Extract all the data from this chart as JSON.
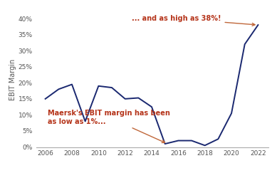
{
  "years": [
    2006,
    2007,
    2008,
    2009,
    2010,
    2011,
    2012,
    2013,
    2014,
    2015,
    2016,
    2017,
    2018,
    2019,
    2020,
    2021,
    2022
  ],
  "ebit_margin": [
    0.15,
    0.18,
    0.195,
    0.08,
    0.19,
    0.185,
    0.15,
    0.153,
    0.125,
    0.01,
    0.02,
    0.02,
    0.005,
    0.025,
    0.105,
    0.32,
    0.38
  ],
  "line_color": "#1a2870",
  "line_width": 1.4,
  "ylim": [
    0,
    0.42
  ],
  "yticks": [
    0,
    0.05,
    0.1,
    0.15,
    0.2,
    0.25,
    0.3,
    0.35,
    0.4
  ],
  "ytick_labels": [
    "0%",
    "5%",
    "10%",
    "15%",
    "20%",
    "25%",
    "30%",
    "35%",
    "40%"
  ],
  "xticks": [
    2006,
    2008,
    2010,
    2012,
    2014,
    2016,
    2018,
    2020,
    2022
  ],
  "ylabel": "EBIT Margin",
  "annotation_low_text": "Maersk's EBIT margin has been\nas low as 1%...",
  "annotation_high_text": "... and as high as 38%!",
  "annotation_color": "#b5341a",
  "arrow_color": "#c0673a",
  "background_color": "#ffffff",
  "spine_color": "#aaaaaa",
  "tick_color": "#555555",
  "tick_fontsize": 6.5,
  "label_fontsize": 7,
  "annotation_fontsize": 7
}
